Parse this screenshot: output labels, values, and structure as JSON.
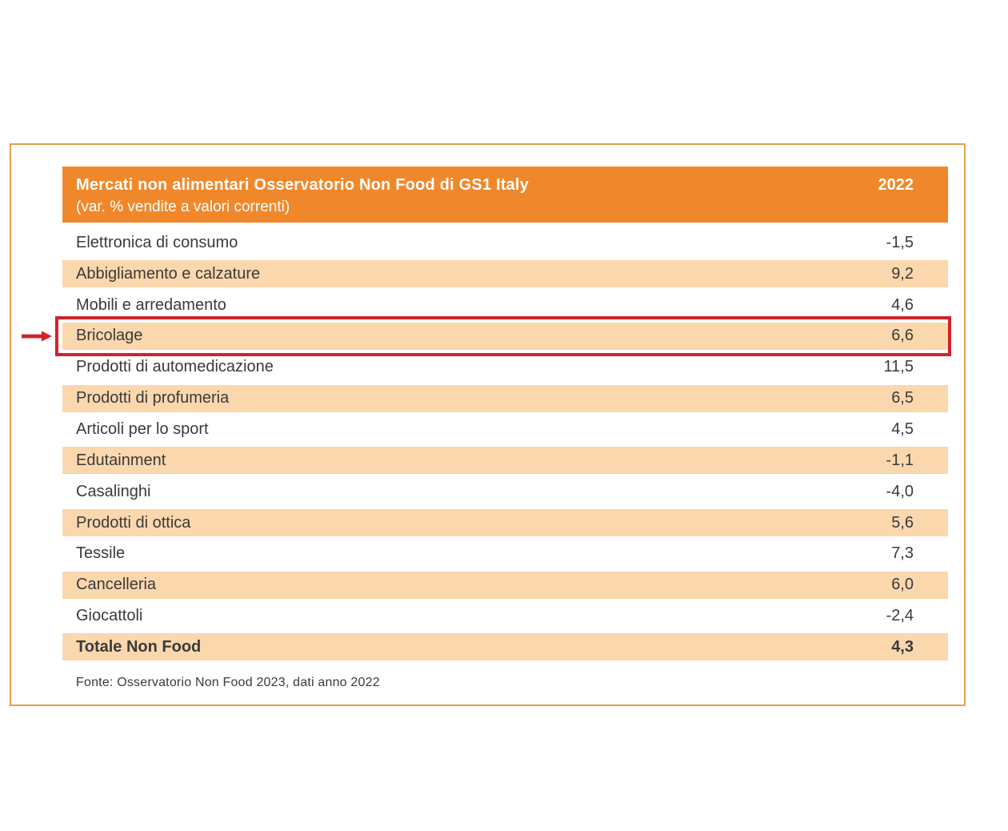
{
  "table": {
    "header": {
      "title": "Mercati non alimentari Osservatorio Non Food  di GS1 Italy",
      "subtitle": "(var. % vendite a valori correnti)",
      "year": "2022"
    },
    "rows": [
      {
        "label": "Elettronica di consumo",
        "value": "-1,5"
      },
      {
        "label": "Abbigliamento e calzature",
        "value": "9,2"
      },
      {
        "label": "Mobili e arredamento",
        "value": "4,6"
      },
      {
        "label": "Bricolage",
        "value": "6,6",
        "highlighted": true
      },
      {
        "label": "Prodotti di automedicazione",
        "value": "11,5"
      },
      {
        "label": "Prodotti di profumeria",
        "value": "6,5"
      },
      {
        "label": "Articoli per lo sport",
        "value": "4,5"
      },
      {
        "label": "Edutainment",
        "value": "-1,1"
      },
      {
        "label": "Casalinghi",
        "value": "-4,0"
      },
      {
        "label": "Prodotti di ottica",
        "value": "5,6"
      },
      {
        "label": "Tessile",
        "value": "7,3"
      },
      {
        "label": "Cancelleria",
        "value": "6,0"
      },
      {
        "label": "Giocattoli",
        "value": "-2,4"
      },
      {
        "label": "Totale Non Food",
        "value": "4,3",
        "bold": true
      }
    ],
    "source": "Fonte: Osservatorio Non Food 2023, dati anno 2022"
  },
  "colors": {
    "header_bg": "#F0882B",
    "row_alt_bg": "#FBD7AE",
    "highlight_red": "#D2232A",
    "card_border": "#DFA150",
    "text": "#3A3A39"
  },
  "chart_data": {
    "type": "table",
    "title": "Mercati non alimentari Osservatorio Non Food di GS1 Italy (var. % vendite a valori correnti)",
    "columns": [
      "Mercato",
      "2022"
    ],
    "categories": [
      "Elettronica di consumo",
      "Abbigliamento e calzature",
      "Mobili e arredamento",
      "Bricolage",
      "Prodotti di automedicazione",
      "Prodotti di profumeria",
      "Articoli per lo sport",
      "Edutainment",
      "Casalinghi",
      "Prodotti di ottica",
      "Tessile",
      "Cancelleria",
      "Giocattoli",
      "Totale Non Food"
    ],
    "values": [
      -1.5,
      9.2,
      4.6,
      6.6,
      11.5,
      6.5,
      4.5,
      -1.1,
      -4.0,
      5.6,
      7.3,
      6.0,
      -2.4,
      4.3
    ],
    "highlighted_category": "Bricolage",
    "source": "Fonte: Osservatorio Non Food 2023, dati anno 2022"
  }
}
